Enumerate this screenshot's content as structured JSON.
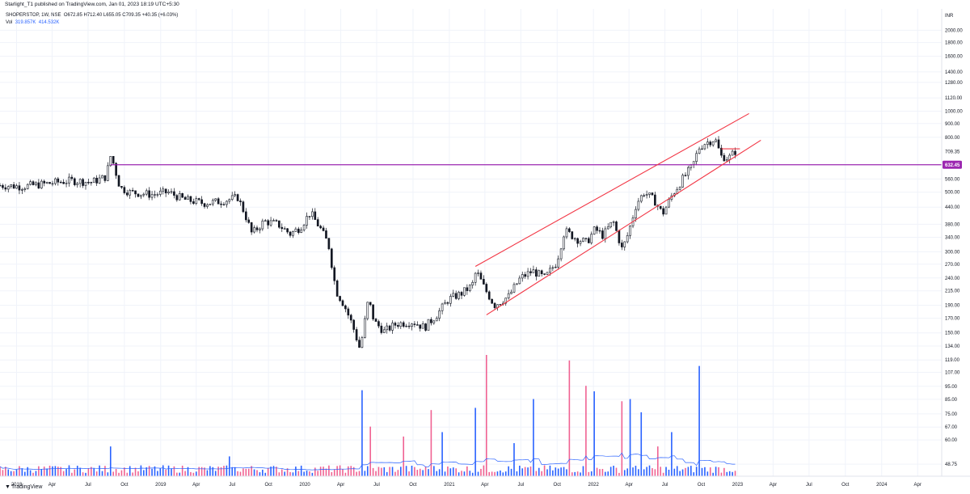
{
  "header": {
    "published": "Starlight_T1 published on TradingView.com, Jan 01, 2023 18:19 UTC+5:30"
  },
  "legend": {
    "symbol": "SHOPERSTOP, 1W, NSE",
    "open": "O672.85",
    "high": "H712.40",
    "low": "L655.05",
    "close": "C709.35",
    "change": "+40.35 (+6.03%)",
    "vol_label": "Vol",
    "vol_value": "319.857K",
    "vol_ma": "414.532K"
  },
  "branding": {
    "logo_text": "TradingView"
  },
  "colors": {
    "up": "#131722",
    "down": "#131722",
    "trend": "#f23645",
    "horizontal_level": "#9c27b0",
    "volume_up": "#2962ff",
    "volume_down": "#f06292",
    "volume_ma": "#2962ff"
  },
  "chart_data": {
    "type": "candlestick",
    "symbol": "SHOPERSTOP",
    "interval": "1W",
    "exchange": "NSE",
    "currency": "INR",
    "y_scale": "log",
    "ylim": [
      44,
      2400
    ],
    "x_range": [
      "2017-11-20",
      "2024-06-01"
    ],
    "y_ticks": [
      "2000.00",
      "1800.00",
      "1600.00",
      "1400.00",
      "1280.00",
      "1120.00",
      "1000.00",
      "900.00",
      "800.00",
      "560.00",
      "500.00",
      "440.00",
      "380.00",
      "340.00",
      "300.00",
      "270.00",
      "240.00",
      "215.00",
      "190.00",
      "170.00",
      "150.00",
      "134.00",
      "119.00",
      "107.00",
      "95.00",
      "85.00",
      "75.00",
      "67.00",
      "60.00",
      "48.75"
    ],
    "x_ticks": [
      {
        "label": "2018",
        "date": "2018-01-01"
      },
      {
        "label": "Apr",
        "date": "2018-04-01"
      },
      {
        "label": "Jul",
        "date": "2018-07-01"
      },
      {
        "label": "Oct",
        "date": "2018-10-01"
      },
      {
        "label": "2019",
        "date": "2019-01-01"
      },
      {
        "label": "Apr",
        "date": "2019-04-01"
      },
      {
        "label": "Jul",
        "date": "2019-07-01"
      },
      {
        "label": "Oct",
        "date": "2019-10-01"
      },
      {
        "label": "2020",
        "date": "2020-01-01"
      },
      {
        "label": "Apr",
        "date": "2020-04-01"
      },
      {
        "label": "Jul",
        "date": "2020-07-01"
      },
      {
        "label": "Oct",
        "date": "2020-10-01"
      },
      {
        "label": "2021",
        "date": "2021-01-01"
      },
      {
        "label": "Apr",
        "date": "2021-04-01"
      },
      {
        "label": "Jul",
        "date": "2021-07-01"
      },
      {
        "label": "Oct",
        "date": "2021-10-01"
      },
      {
        "label": "2022",
        "date": "2022-01-01"
      },
      {
        "label": "Apr",
        "date": "2022-04-01"
      },
      {
        "label": "Jul",
        "date": "2022-07-01"
      },
      {
        "label": "Oct",
        "date": "2022-10-01"
      },
      {
        "label": "2023",
        "date": "2023-01-01"
      },
      {
        "label": "Apr",
        "date": "2023-04-01"
      },
      {
        "label": "Jul",
        "date": "2023-07-01"
      },
      {
        "label": "Oct",
        "date": "2023-10-01"
      },
      {
        "label": "2024",
        "date": "2024-01-01"
      },
      {
        "label": "Apr",
        "date": "2024-04-01"
      }
    ],
    "price_anchors": [
      [
        "2017-11-20",
        530
      ],
      [
        "2018-01-15",
        525
      ],
      [
        "2018-03-05",
        535
      ],
      [
        "2018-04-15",
        545
      ],
      [
        "2018-05-20",
        552
      ],
      [
        "2018-07-10",
        545
      ],
      [
        "2018-08-15",
        570
      ],
      [
        "2018-08-28",
        690
      ],
      [
        "2018-09-20",
        520
      ],
      [
        "2018-10-15",
        500
      ],
      [
        "2018-12-10",
        490
      ],
      [
        "2019-01-20",
        500
      ],
      [
        "2019-03-01",
        470
      ],
      [
        "2019-04-20",
        455
      ],
      [
        "2019-06-01",
        462
      ],
      [
        "2019-07-15",
        478
      ],
      [
        "2019-08-01",
        420
      ],
      [
        "2019-08-20",
        350
      ],
      [
        "2019-09-20",
        390
      ],
      [
        "2019-10-25",
        380
      ],
      [
        "2019-11-25",
        350
      ],
      [
        "2019-12-20",
        370
      ],
      [
        "2020-01-15",
        420
      ],
      [
        "2020-02-10",
        365
      ],
      [
        "2020-03-01",
        320
      ],
      [
        "2020-03-20",
        215
      ],
      [
        "2020-04-10",
        190
      ],
      [
        "2020-05-01",
        160
      ],
      [
        "2020-05-20",
        130
      ],
      [
        "2020-06-10",
        200
      ],
      [
        "2020-06-25",
        165
      ],
      [
        "2020-07-20",
        152
      ],
      [
        "2020-08-20",
        162
      ],
      [
        "2020-10-01",
        165
      ],
      [
        "2020-10-30",
        157
      ],
      [
        "2020-11-30",
        175
      ],
      [
        "2020-12-30",
        200
      ],
      [
        "2021-01-31",
        210
      ],
      [
        "2021-02-28",
        225
      ],
      [
        "2021-03-10",
        255
      ],
      [
        "2021-03-31",
        220
      ],
      [
        "2021-04-25",
        190
      ],
      [
        "2021-05-31",
        205
      ],
      [
        "2021-06-30",
        240
      ],
      [
        "2021-07-31",
        255
      ],
      [
        "2021-08-31",
        240
      ],
      [
        "2021-09-30",
        275
      ],
      [
        "2021-10-20",
        360
      ],
      [
        "2021-11-20",
        335
      ],
      [
        "2021-12-15",
        325
      ],
      [
        "2022-01-05",
        365
      ],
      [
        "2022-01-25",
        345
      ],
      [
        "2022-02-20",
        390
      ],
      [
        "2022-03-15",
        305
      ],
      [
        "2022-03-31",
        355
      ],
      [
        "2022-04-20",
        455
      ],
      [
        "2022-05-10",
        500
      ],
      [
        "2022-06-05",
        465
      ],
      [
        "2022-06-25",
        415
      ],
      [
        "2022-07-20",
        490
      ],
      [
        "2022-08-15",
        560
      ],
      [
        "2022-09-10",
        630
      ],
      [
        "2022-09-25",
        730
      ],
      [
        "2022-10-10",
        760
      ],
      [
        "2022-11-05",
        790
      ],
      [
        "2022-11-20",
        680
      ],
      [
        "2022-12-10",
        670
      ],
      [
        "2022-12-26",
        709
      ]
    ],
    "vol_spikes": [
      [
        "2018-08-27",
        0.27
      ],
      [
        "2019-06-24",
        0.18
      ],
      [
        "2020-05-25",
        0.78
      ],
      [
        "2020-06-15",
        0.45
      ],
      [
        "2020-11-16",
        0.6
      ],
      [
        "2020-12-14",
        0.4
      ],
      [
        "2021-03-08",
        0.62
      ],
      [
        "2021-04-05",
        1.1
      ],
      [
        "2021-08-02",
        0.7
      ],
      [
        "2021-11-01",
        1.05
      ],
      [
        "2021-12-13",
        0.82
      ],
      [
        "2022-01-03",
        0.77
      ],
      [
        "2022-03-14",
        0.68
      ],
      [
        "2022-04-04",
        0.7
      ],
      [
        "2022-05-02",
        0.58
      ],
      [
        "2022-07-18",
        0.4
      ],
      [
        "2022-09-26",
        1.0
      ],
      [
        "2022-06-13",
        0.27
      ],
      [
        "2020-09-07",
        0.36
      ],
      [
        "2021-06-14",
        0.3
      ]
    ],
    "lines": [
      {
        "name": "support-resistance",
        "kind": "horizontal",
        "price": 632.45,
        "from": "2018-08-27",
        "color": "#9c27b0"
      },
      {
        "name": "channel-upper",
        "kind": "trend",
        "from": [
          "2021-03-08",
          265
        ],
        "to": [
          "2023-01-30",
          980
        ],
        "color": "#f23645"
      },
      {
        "name": "channel-lower",
        "kind": "trend",
        "from": [
          "2021-04-05",
          175
        ],
        "to": [
          "2023-03-01",
          780
        ],
        "color": "#f23645"
      },
      {
        "name": "recent-high",
        "kind": "segment",
        "from": [
          "2022-11-21",
          725
        ],
        "to": [
          "2023-01-07",
          725
        ],
        "color": "#f23645"
      }
    ],
    "price_labels": [
      {
        "value": "709.35",
        "price": 709.35,
        "style": "plain"
      },
      {
        "value": "632.45",
        "price": 632.45,
        "style": "badge",
        "color": "#9c27b0"
      }
    ],
    "axis_unit": "INR"
  }
}
